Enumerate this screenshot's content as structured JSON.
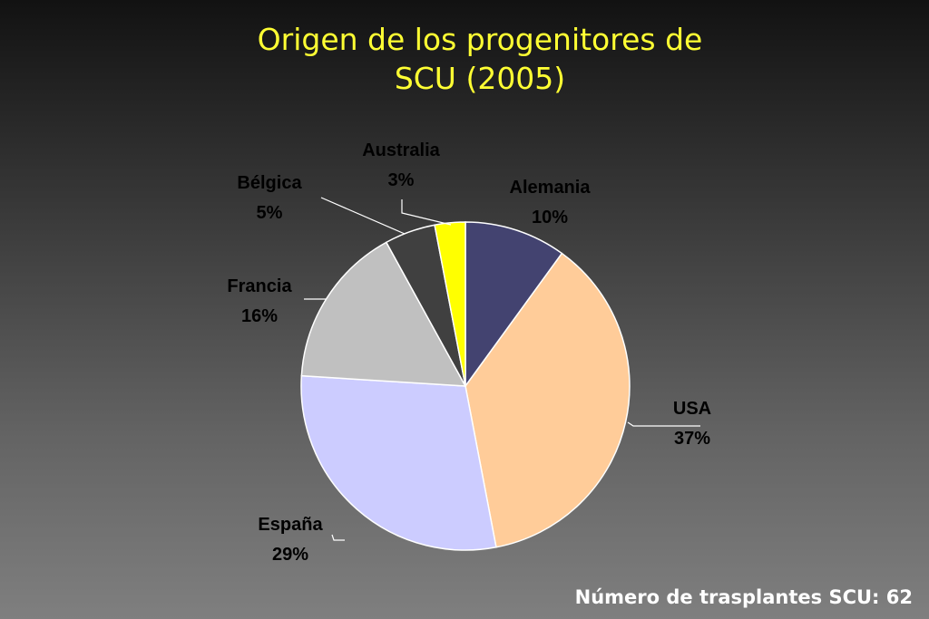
{
  "title_lines": [
    "Origen de los progenitores de",
    "SCU (2005)"
  ],
  "footer_text": "Número de trasplantes SCU: 62",
  "chart_data": {
    "type": "pie",
    "title": "Origen de los progenitores de SCU (2005)",
    "slices": [
      {
        "label": "Alemania",
        "value": 10,
        "value_label": "10%",
        "color": "#434370"
      },
      {
        "label": "USA",
        "value": 37,
        "value_label": "37%",
        "color": "#ffcc99"
      },
      {
        "label": "España",
        "value": 29,
        "value_label": "29%",
        "color": "#ccccff"
      },
      {
        "label": "Francia",
        "value": 16,
        "value_label": "16%",
        "color": "#c0c0c0"
      },
      {
        "label": "Bélgica",
        "value": 5,
        "value_label": "5%",
        "color": "#404040"
      },
      {
        "label": "Australia",
        "value": 3,
        "value_label": "3%",
        "color": "#ffff00"
      }
    ],
    "start_at": "top",
    "direction": "clockwise",
    "legend": "none",
    "slice_border_color": "#ffffff"
  }
}
